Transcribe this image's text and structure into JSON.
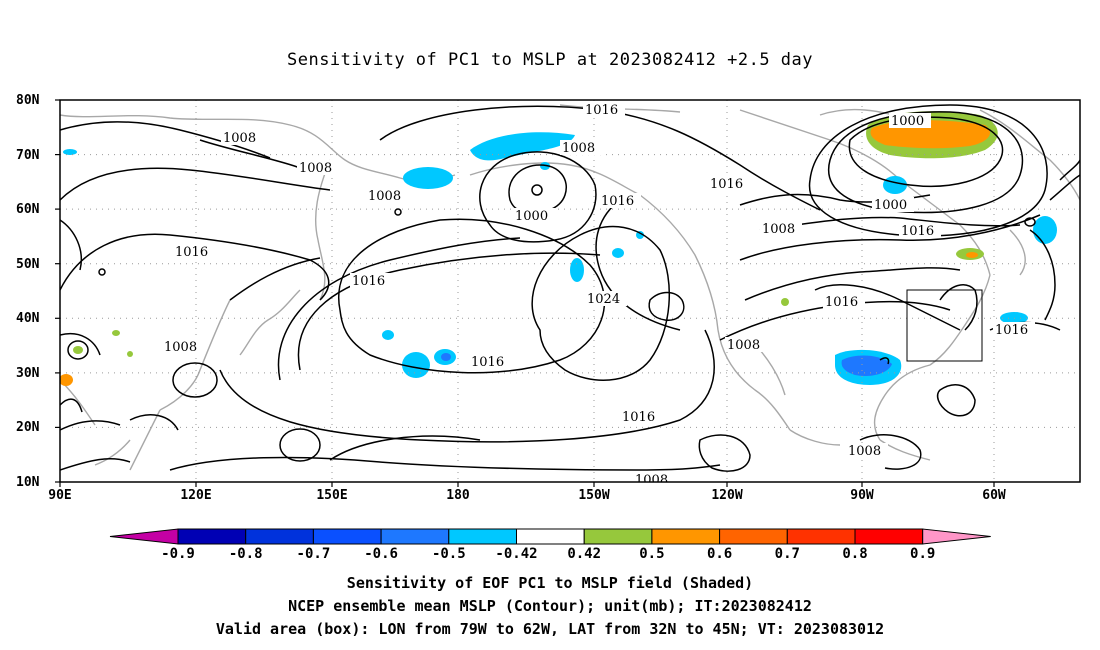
{
  "title": "Sensitivity of PC1 to MSLP at 2023082412 +2.5 day",
  "lat_labels": [
    "80N",
    "70N",
    "60N",
    "50N",
    "40N",
    "30N",
    "20N",
    "10N"
  ],
  "lon_labels": [
    "90E",
    "120E",
    "150E",
    "180",
    "150W",
    "120W",
    "90W",
    "60W"
  ],
  "colorbar": {
    "labels": [
      "-0.9",
      "-0.8",
      "-0.7",
      "-0.6",
      "-0.5",
      "-0.42",
      "0.42",
      "0.5",
      "0.6",
      "0.7",
      "0.8",
      "0.9"
    ],
    "colors": [
      "#c400a4",
      "#0000b4",
      "#0032dc",
      "#0a50ff",
      "#1e78ff",
      "#00c8ff",
      "#ffffff",
      "#96c83c",
      "#ff9600",
      "#ff6400",
      "#ff3200",
      "#ff0000",
      "#ff96c8"
    ]
  },
  "contour_labels": {
    "c1016_top": "1016",
    "c1008_a": "1008",
    "c1008_b": "1008",
    "c1008_c": "1008",
    "c1008_d": "1008",
    "c1000_a": "1000",
    "c1016_a": "1016",
    "c1016_b": "1016",
    "c1016_c": "1016",
    "c1016_d": "1016",
    "c1016_e": "1016",
    "c1016_f": "1016",
    "c1016_g": "1016",
    "c1024": "1024",
    "c1008_e": "1008",
    "c1008_f": "1008",
    "c1008_g": "1008",
    "c1000_b": "1000",
    "c1000_c": "1000",
    "c1008_h": "1008",
    "c1008_i": "1008"
  },
  "captions": {
    "line1": "Sensitivity of EOF PC1 to MSLP field (Shaded)",
    "line2": "NCEP ensemble mean MSLP (Contour); unit(mb); IT:2023082412",
    "line3": "Valid area (box): LON from 79W to 62W, LAT from 32N to 45N; VT: 2023083012"
  }
}
